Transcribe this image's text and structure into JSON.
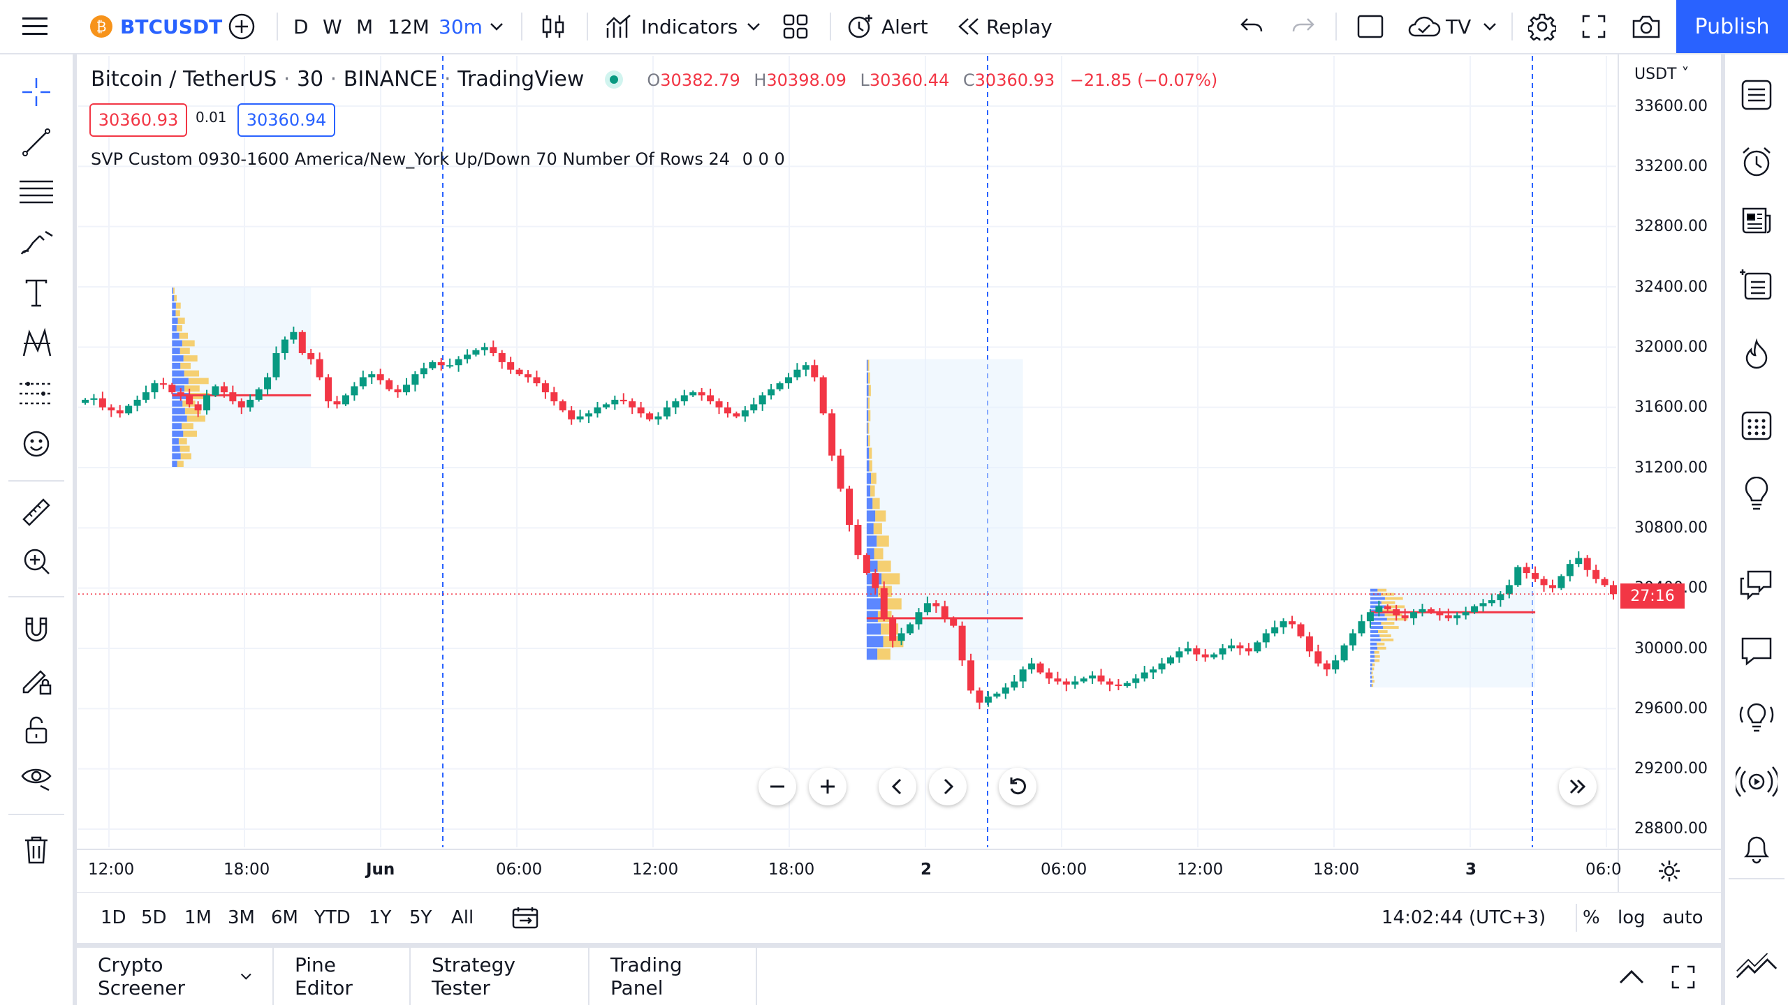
{
  "colors": {
    "accent": "#2962ff",
    "up": "#089981",
    "down": "#f23645",
    "volume_up": "#2962ff",
    "volume_down": "#f5c242",
    "grid": "#f0f3fa"
  },
  "topbar": {
    "symbol": "BTCUSDT",
    "intervals": [
      "D",
      "W",
      "M",
      "12M",
      "30m"
    ],
    "indicators_label": "Indicators",
    "alert_label": "Alert",
    "replay_label": "Replay",
    "tv_label": "TV",
    "publish_label": "Publish"
  },
  "legend": {
    "title_parts": [
      "Bitcoin / TetherUS",
      "30",
      "BINANCE",
      "TradingView"
    ],
    "o_label": "O",
    "o_value": "30382.79",
    "h_label": "H",
    "h_value": "30398.09",
    "l_label": "L",
    "l_value": "30360.44",
    "c_label": "C",
    "c_value": "30360.93",
    "change": "−21.85 (−0.07%)",
    "bid": "30360.93",
    "spread": "0.01",
    "ask": "30360.94",
    "svp_name": "SVP",
    "svp_params": "Custom 0930-1600 America/New_York Up/Down 70 Number Of Rows 24",
    "svp_values": "0  0  0"
  },
  "price_axis": {
    "currency": "USDT",
    "labels": [
      "33600.00",
      "33200.00",
      "32800.00",
      "32400.00",
      "32000.00",
      "31600.00",
      "31200.00",
      "30800.00",
      "30400.00",
      "30000.00",
      "29600.00",
      "29200.00",
      "28800.00"
    ],
    "countdown": "27:16"
  },
  "time_axis": {
    "labels": [
      "12:00",
      "18:00",
      "Jun",
      "06:00",
      "12:00",
      "18:00",
      "2",
      "06:00",
      "12:00",
      "18:00",
      "3",
      "06:0"
    ]
  },
  "range_bar": {
    "ranges": [
      "1D",
      "5D",
      "1M",
      "3M",
      "6M",
      "YTD",
      "1Y",
      "5Y",
      "All"
    ],
    "clock": "14:02:44 (UTC+3)",
    "percent_label": "%",
    "log_label": "log",
    "auto_label": "auto"
  },
  "bottom_panel": {
    "tabs": [
      "Crypto Screener",
      "Pine Editor",
      "Strategy Tester",
      "Trading Panel"
    ]
  },
  "chart_data": {
    "type": "candlestick",
    "symbol": "BTCUSDT",
    "interval": "30",
    "ylim": [
      28800,
      33800
    ],
    "price_ticks": [
      33600,
      33200,
      32800,
      32400,
      32000,
      31600,
      31200,
      30800,
      30400,
      30000,
      29600,
      29200,
      28800
    ],
    "last_price": 30360.93,
    "closes": [
      31650,
      31660,
      31600,
      31580,
      31560,
      31610,
      31650,
      31700,
      31760,
      31750,
      31700,
      31680,
      31620,
      31580,
      31680,
      31740,
      31700,
      31640,
      31600,
      31650,
      31720,
      31800,
      31960,
      32050,
      32100,
      31960,
      31920,
      31800,
      31640,
      31620,
      31680,
      31740,
      31800,
      31820,
      31780,
      31720,
      31700,
      31750,
      31820,
      31860,
      31900,
      31880,
      31880,
      31920,
      31950,
      31980,
      32000,
      31960,
      31900,
      31850,
      31820,
      31800,
      31760,
      31700,
      31640,
      31580,
      31520,
      31540,
      31560,
      31600,
      31620,
      31650,
      31640,
      31600,
      31560,
      31520,
      31540,
      31600,
      31640,
      31680,
      31700,
      31680,
      31640,
      31600,
      31560,
      31540,
      31580,
      31620,
      31680,
      31720,
      31760,
      31800,
      31850,
      31880,
      31800,
      31560,
      31280,
      31060,
      30820,
      30620,
      30500,
      30400,
      30200,
      30050,
      30100,
      30160,
      30240,
      30300,
      30280,
      30200,
      30150,
      29920,
      29720,
      29640,
      29680,
      29700,
      29740,
      29780,
      29860,
      29900,
      29840,
      29800,
      29780,
      29760,
      29780,
      29800,
      29820,
      29780,
      29760,
      29750,
      29770,
      29800,
      29840,
      29860,
      29900,
      29940,
      29980,
      30000,
      29960,
      29940,
      29960,
      30000,
      30020,
      30000,
      29980,
      30040,
      30100,
      30140,
      30180,
      30160,
      30080,
      29980,
      29900,
      29860,
      29920,
      30020,
      30100,
      30180,
      30240,
      30280,
      30260,
      30220,
      30200,
      30240,
      30260,
      30240,
      30220,
      30200,
      30220,
      30240,
      30280,
      30300,
      30320,
      30360,
      30420,
      30540,
      30500,
      30460,
      30420,
      30400,
      30480,
      30560,
      30600,
      30520,
      30460,
      30420,
      30360
    ],
    "session_volume_profiles": [
      {
        "poc": 31680,
        "range": [
          31200,
          32400
        ]
      },
      {
        "poc": 30200,
        "range": [
          29920,
          31920
        ]
      },
      {
        "poc": 30240,
        "range": [
          29740,
          30400
        ]
      }
    ]
  }
}
